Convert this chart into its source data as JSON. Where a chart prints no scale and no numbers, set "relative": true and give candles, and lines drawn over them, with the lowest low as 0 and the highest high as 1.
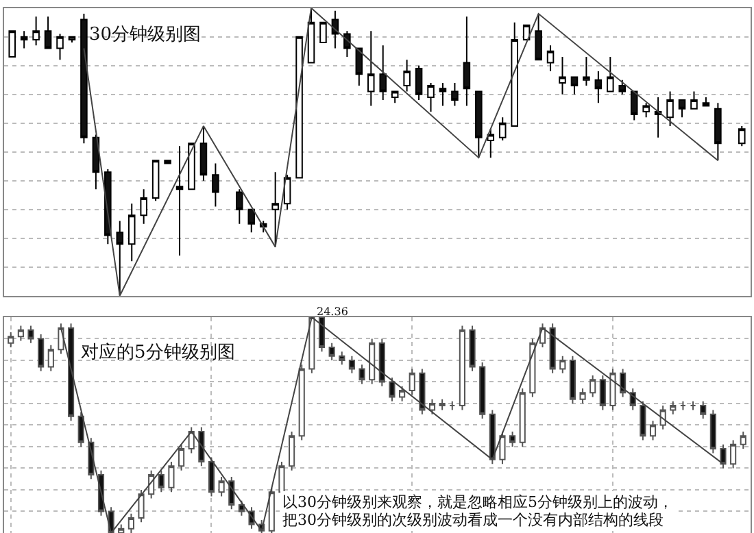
{
  "chart_data": [
    {
      "type": "candlestick",
      "title": "30分钟级别图",
      "relative": true,
      "grid": "y",
      "categories": [
        null,
        null,
        null,
        null,
        null,
        null,
        null,
        null,
        null,
        null,
        null,
        null,
        null,
        null,
        null,
        null,
        null,
        null,
        null,
        null,
        null,
        null,
        null,
        null,
        null,
        null,
        null,
        null,
        null,
        null,
        null,
        null,
        null,
        null,
        null,
        null,
        null,
        null,
        null,
        null,
        null,
        null,
        null,
        null,
        null,
        null,
        null,
        null,
        null,
        null,
        null,
        null,
        null,
        null,
        null,
        null,
        null,
        null,
        null,
        null,
        null,
        null
      ],
      "ohlc": [
        [
          0.83,
          0.92,
          0.83,
          0.92
        ],
        [
          0.9,
          0.92,
          0.86,
          0.89
        ],
        [
          0.89,
          0.97,
          0.87,
          0.92
        ],
        [
          0.92,
          0.97,
          0.86,
          0.86
        ],
        [
          0.86,
          0.91,
          0.82,
          0.9
        ],
        [
          0.89,
          0.9,
          0.88,
          0.9
        ],
        [
          0.96,
          0.98,
          0.53,
          0.55
        ],
        [
          0.55,
          0.56,
          0.37,
          0.43
        ],
        [
          0.43,
          0.44,
          0.18,
          0.21
        ],
        [
          0.22,
          0.26,
          0,
          0.18
        ],
        [
          0.18,
          0.32,
          0.12,
          0.28
        ],
        [
          0.28,
          0.37,
          0.25,
          0.34
        ],
        [
          0.34,
          0.47,
          0.33,
          0.47
        ],
        [
          0.47,
          0.47,
          0.46,
          0.46
        ],
        [
          0.37,
          0.52,
          0.14,
          0.38
        ],
        [
          0.37,
          0.53,
          0.37,
          0.53
        ],
        [
          0.53,
          0.59,
          0.4,
          0.42
        ],
        [
          0.42,
          0.46,
          0.31,
          0.36
        ],
        null,
        [
          0.36,
          0.37,
          0.25,
          0.3
        ],
        [
          0.3,
          0.3,
          0.22,
          0.25
        ],
        [
          0.25,
          0.26,
          0.22,
          0.24
        ],
        [
          0.3,
          0.43,
          0.17,
          0.32
        ],
        [
          0.32,
          0.42,
          0.3,
          0.41
        ],
        [
          0.41,
          0.9,
          0.41,
          0.9
        ],
        [
          0.81,
          1,
          0.81,
          0.95
        ],
        [
          0.88,
          0.95,
          0.88,
          0.95
        ],
        [
          0.96,
          0.99,
          0.86,
          0.91
        ],
        [
          0.91,
          0.92,
          0.83,
          0.86
        ],
        [
          0.86,
          0.86,
          0.73,
          0.77
        ],
        [
          0.71,
          0.92,
          0.66,
          0.77
        ],
        [
          0.77,
          0.87,
          0.68,
          0.71
        ],
        [
          0.69,
          0.71,
          0.67,
          0.71
        ],
        [
          0.73,
          0.82,
          0.71,
          0.78
        ],
        [
          0.79,
          0.8,
          0.68,
          0.7
        ],
        [
          0.69,
          0.74,
          0.64,
          0.73
        ],
        [
          0.72,
          0.74,
          0.66,
          0.71
        ],
        [
          0.71,
          0.74,
          0.66,
          0.68
        ],
        [
          0.81,
          0.97,
          0.66,
          0.72
        ],
        [
          0.71,
          0.71,
          0.48,
          0.55
        ],
        [
          0.54,
          0.58,
          0.48,
          0.56
        ],
        [
          0.55,
          0.62,
          0.54,
          0.6
        ],
        [
          0.59,
          0.95,
          0.59,
          0.89
        ],
        [
          0.89,
          0.94,
          0.89,
          0.94
        ],
        [
          0.92,
          0.98,
          0.82,
          0.82
        ],
        [
          0.81,
          0.87,
          0.78,
          0.85
        ],
        [
          0.74,
          0.83,
          0.7,
          0.76
        ],
        [
          0.76,
          0.76,
          0.7,
          0.73
        ],
        [
          0.75,
          0.83,
          0.73,
          0.76
        ],
        [
          0.75,
          0.78,
          0.67,
          0.72
        ],
        [
          0.71,
          0.83,
          0.71,
          0.76
        ],
        [
          0.73,
          0.75,
          0.7,
          0.71
        ],
        [
          0.71,
          0.71,
          0.61,
          0.63
        ],
        [
          0.64,
          0.67,
          0.62,
          0.66
        ],
        [
          0.64,
          0.69,
          0.55,
          0.63
        ],
        [
          0.62,
          0.71,
          0.59,
          0.68
        ],
        [
          0.68,
          0.68,
          0.62,
          0.65
        ],
        [
          0.65,
          0.71,
          0.65,
          0.68
        ],
        [
          0.67,
          0.69,
          0.66,
          0.66
        ],
        [
          0.65,
          0.67,
          0.47,
          0.53
        ],
        null,
        [
          0.53,
          0.59,
          0.52,
          0.58
        ]
      ],
      "series": [
        {
          "type": "line",
          "color": "#444444",
          "values": [
            null,
            null,
            null,
            null,
            null,
            null,
            0.86,
            null,
            null,
            0,
            null,
            null,
            null,
            null,
            null,
            null,
            0.59,
            null,
            null,
            null,
            null,
            null,
            0.17,
            null,
            null,
            1,
            null,
            null,
            null,
            null,
            null,
            null,
            null,
            null,
            null,
            null,
            null,
            null,
            null,
            0.48,
            null,
            null,
            null,
            null,
            0.98,
            null,
            null,
            null,
            null,
            null,
            null,
            null,
            null,
            null,
            null,
            null,
            null,
            null,
            null,
            0.47,
            null,
            null
          ]
        }
      ]
    },
    {
      "type": "candlestick",
      "title": "对应的5分钟级别图",
      "relative": true,
      "grid": true,
      "categories": [
        null,
        null,
        null,
        null,
        null,
        null,
        null,
        null,
        null,
        null,
        null,
        null,
        null,
        null,
        null,
        null,
        null,
        null,
        null,
        null,
        null,
        null,
        null,
        null,
        null,
        null,
        null,
        null,
        null,
        null,
        null,
        null,
        null,
        null,
        null,
        null,
        null,
        null,
        null,
        null,
        null,
        null,
        null,
        null,
        null,
        null,
        null,
        null,
        null,
        null,
        null,
        null,
        null,
        null,
        null,
        null,
        null,
        null,
        null,
        null,
        null,
        null,
        null,
        null,
        null,
        null,
        null,
        null,
        null,
        null,
        null,
        null,
        null,
        null
      ],
      "ohlc": [
        [
          0.88,
          0.93,
          0.86,
          0.91
        ],
        [
          0.91,
          0.96,
          0.89,
          0.94
        ],
        [
          0.94,
          0.96,
          0.88,
          0.9
        ],
        [
          0.9,
          0.92,
          0.75,
          0.77
        ],
        [
          0.77,
          0.87,
          0.75,
          0.85
        ],
        [
          0.85,
          0.97,
          0.83,
          0.95
        ],
        [
          0.95,
          0.97,
          0.52,
          0.54
        ],
        [
          0.54,
          0.56,
          0.4,
          0.42
        ],
        [
          0.42,
          0.44,
          0.25,
          0.27
        ],
        [
          0.27,
          0.29,
          0.08,
          0.1
        ],
        [
          0.1,
          0.12,
          0,
          0
        ],
        [
          0,
          0.04,
          0,
          0.02
        ],
        [
          0.02,
          0.09,
          0,
          0.07
        ],
        [
          0.07,
          0.2,
          0.05,
          0.18
        ],
        [
          0.18,
          0.29,
          0.16,
          0.27
        ],
        [
          0.27,
          0.29,
          0.19,
          0.21
        ],
        [
          0.21,
          0.33,
          0.19,
          0.31
        ],
        [
          0.31,
          0.41,
          0.29,
          0.39
        ],
        [
          0.39,
          0.49,
          0.37,
          0.47
        ],
        [
          0.47,
          0.49,
          0.31,
          0.33
        ],
        [
          0.33,
          0.35,
          0.17,
          0.19
        ],
        [
          0.19,
          0.26,
          0.17,
          0.24
        ],
        [
          0.24,
          0.26,
          0.11,
          0.13
        ],
        [
          0.13,
          0.15,
          0.08,
          0.1
        ],
        [
          0.1,
          0.12,
          0.02,
          0.04
        ],
        [
          0.04,
          0.06,
          0,
          0.01
        ],
        [
          0.01,
          0.21,
          0,
          0.19
        ],
        [
          0.19,
          0.33,
          0.17,
          0.31
        ],
        [
          0.31,
          0.47,
          0.29,
          0.45
        ],
        [
          0.45,
          0.78,
          0.43,
          0.76
        ],
        [
          0.76,
          1,
          0.74,
          1
        ],
        [
          1,
          1,
          0.84,
          0.86
        ],
        [
          0.86,
          0.88,
          0.8,
          0.82
        ],
        [
          0.82,
          0.84,
          0.78,
          0.8
        ],
        [
          0.8,
          0.82,
          0.74,
          0.76
        ],
        [
          0.76,
          0.78,
          0.69,
          0.71
        ],
        [
          0.71,
          0.9,
          0.69,
          0.88
        ],
        [
          0.88,
          0.9,
          0.68,
          0.7
        ],
        [
          0.7,
          0.72,
          0.61,
          0.63
        ],
        [
          0.63,
          0.68,
          0.61,
          0.66
        ],
        [
          0.66,
          0.76,
          0.64,
          0.74
        ],
        [
          0.74,
          0.76,
          0.55,
          0.57
        ],
        [
          0.57,
          0.62,
          0.55,
          0.6
        ],
        [
          0.6,
          0.62,
          0.57,
          0.59
        ],
        [
          0.59,
          0.61,
          0.57,
          0.59
        ],
        [
          0.59,
          0.96,
          0.57,
          0.94
        ],
        [
          0.94,
          0.96,
          0.75,
          0.77
        ],
        [
          0.77,
          0.79,
          0.53,
          0.55
        ],
        [
          0.55,
          0.57,
          0.32,
          0.34
        ],
        [
          0.34,
          0.47,
          0.32,
          0.45
        ],
        [
          0.45,
          0.47,
          0.4,
          0.42
        ],
        [
          0.42,
          0.67,
          0.4,
          0.65
        ],
        [
          0.65,
          0.9,
          0.63,
          0.88
        ],
        [
          0.88,
          0.97,
          0.86,
          0.95
        ],
        [
          0.95,
          0.97,
          0.74,
          0.76
        ],
        [
          0.76,
          0.82,
          0.74,
          0.8
        ],
        [
          0.8,
          0.82,
          0.6,
          0.62
        ],
        [
          0.62,
          0.67,
          0.6,
          0.65
        ],
        [
          0.65,
          0.73,
          0.63,
          0.71
        ],
        [
          0.71,
          0.73,
          0.57,
          0.59
        ],
        [
          0.59,
          0.76,
          0.57,
          0.74
        ],
        [
          0.74,
          0.76,
          0.63,
          0.65
        ],
        [
          0.65,
          0.67,
          0.57,
          0.59
        ],
        [
          0.59,
          0.61,
          0.43,
          0.45
        ],
        [
          0.45,
          0.52,
          0.43,
          0.5
        ],
        [
          0.5,
          0.59,
          0.48,
          0.57
        ],
        [
          0.57,
          0.61,
          0.55,
          0.59
        ],
        [
          0.59,
          0.61,
          0.57,
          0.59
        ],
        [
          0.59,
          0.61,
          0.57,
          0.59
        ],
        [
          0.59,
          0.61,
          0.53,
          0.55
        ],
        [
          0.55,
          0.57,
          0.37,
          0.39
        ],
        [
          0.39,
          0.41,
          0.3,
          0.32
        ],
        [
          0.32,
          0.43,
          0.3,
          0.41
        ],
        [
          0.41,
          0.47,
          0.39,
          0.45
        ]
      ],
      "series": [
        {
          "type": "line",
          "color": "#444444",
          "values": [
            null,
            null,
            null,
            null,
            null,
            0.95,
            null,
            null,
            null,
            null,
            0,
            null,
            null,
            null,
            null,
            null,
            null,
            null,
            0.47,
            null,
            null,
            null,
            null,
            null,
            null,
            0.01,
            null,
            null,
            null,
            null,
            1,
            null,
            null,
            null,
            null,
            null,
            null,
            null,
            null,
            null,
            null,
            null,
            null,
            null,
            null,
            null,
            null,
            null,
            0.34,
            null,
            null,
            null,
            null,
            0.95,
            null,
            null,
            null,
            null,
            null,
            null,
            null,
            null,
            null,
            null,
            null,
            null,
            null,
            null,
            null,
            null,
            null,
            0.32,
            null,
            null
          ]
        }
      ],
      "annotations": [
        "24.36",
        "以30分钟级别来观察，就是忽略相应5分钟级别上的波动，",
        "把30分钟级别的次级别波动看成一个没有内部结构的线段"
      ]
    }
  ]
}
